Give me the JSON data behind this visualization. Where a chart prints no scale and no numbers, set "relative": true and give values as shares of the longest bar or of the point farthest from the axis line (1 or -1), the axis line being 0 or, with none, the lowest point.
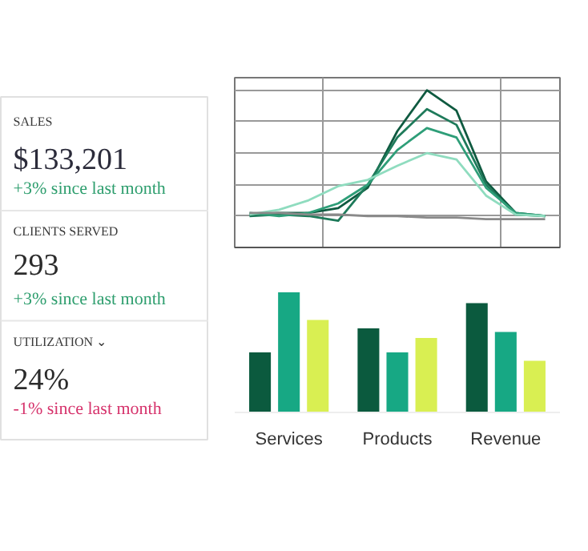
{
  "chart_data": [
    {
      "type": "other",
      "annotations": [
        "SALES",
        "$133,201",
        "+3% since last month",
        "CLIENTS SERVED",
        "293",
        "+3% since last month",
        "UTILIZATION ⌄",
        "24%",
        "-1% since last month"
      ],
      "colors": [
        "#3a3a3a",
        "#2b2b3a",
        "#2e9e6e",
        "#3a3a3a",
        "#2b2b2b",
        "#2e9e6e",
        "#3a3a3a",
        "#2b2b2b",
        "#d6336c"
      ]
    },
    {
      "type": "line",
      "relative": true,
      "grid": true,
      "categories": [
        null,
        null,
        null,
        null,
        null,
        null,
        null,
        null,
        null,
        null,
        null
      ],
      "series": [
        {
          "color": "#0f5a40",
          "values": [
            0.21,
            0.22,
            0.22,
            0.25,
            0.38,
            0.74,
            1,
            0.87,
            0.42,
            0.22,
            0.2
          ]
        },
        {
          "color": "#1e7a5a",
          "values": [
            0.2,
            0.21,
            0.2,
            0.17,
            0.4,
            0.7,
            0.88,
            0.78,
            0.4,
            0.21,
            0.2
          ]
        },
        {
          "color": "#2e9e78",
          "values": [
            0.22,
            0.2,
            0.22,
            0.28,
            0.4,
            0.62,
            0.76,
            0.7,
            0.38,
            0.22,
            0.2
          ]
        },
        {
          "color": "#8fdcbf",
          "values": [
            0.21,
            0.24,
            0.3,
            0.39,
            0.43,
            0.52,
            0.6,
            0.56,
            0.33,
            0.21,
            0.2
          ]
        },
        {
          "color": "#8a8a8a",
          "values": [
            0.22,
            0.22,
            0.21,
            0.21,
            0.2,
            0.2,
            0.19,
            0.19,
            0.18,
            0.18,
            0.18
          ]
        }
      ]
    },
    {
      "type": "bar",
      "relative": true,
      "categories": [
        "Services",
        "Products",
        "Revenue"
      ],
      "series": [
        {
          "color": "#0b5a3e",
          "values": [
            0.5,
            0.7,
            0.91
          ]
        },
        {
          "color": "#17a884",
          "values": [
            1,
            0.5,
            0.67
          ]
        },
        {
          "color": "#d9ef52",
          "values": [
            0.77,
            0.62,
            0.43
          ]
        }
      ]
    }
  ]
}
